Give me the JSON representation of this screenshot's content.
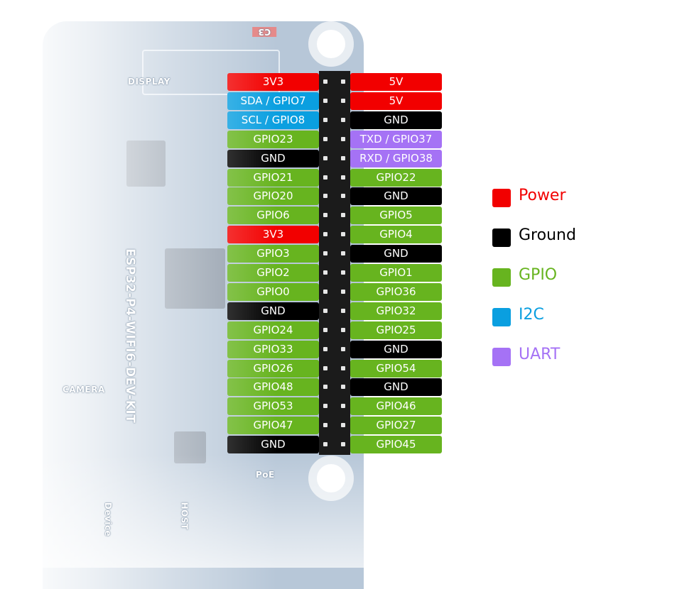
{
  "colors": {
    "power": "#f20000",
    "ground": "#000000",
    "gpio": "#67b41f",
    "i2c": "#0a9fe0",
    "uart": "#a572f5"
  },
  "board": {
    "name": "ESP32-P4-WIFI6-DEV-KIT",
    "display_label": "DISPLAY",
    "camera_label": "CAMERA",
    "poe_label": "PoE",
    "host_label": "HOST",
    "device_label": "Device",
    "cap_label": "C3"
  },
  "pins": {
    "left": [
      {
        "label": "3V3",
        "type": "power"
      },
      {
        "label": "SDA / GPIO7",
        "type": "i2c"
      },
      {
        "label": "SCL / GPIO8",
        "type": "i2c"
      },
      {
        "label": "GPIO23",
        "type": "gpio"
      },
      {
        "label": "GND",
        "type": "ground"
      },
      {
        "label": "GPIO21",
        "type": "gpio"
      },
      {
        "label": "GPIO20",
        "type": "gpio"
      },
      {
        "label": "GPIO6",
        "type": "gpio"
      },
      {
        "label": "3V3",
        "type": "power"
      },
      {
        "label": "GPIO3",
        "type": "gpio"
      },
      {
        "label": "GPIO2",
        "type": "gpio"
      },
      {
        "label": "GPIO0",
        "type": "gpio"
      },
      {
        "label": "GND",
        "type": "ground"
      },
      {
        "label": "GPIO24",
        "type": "gpio"
      },
      {
        "label": "GPIO33",
        "type": "gpio"
      },
      {
        "label": "GPIO26",
        "type": "gpio"
      },
      {
        "label": "GPIO48",
        "type": "gpio"
      },
      {
        "label": "GPIO53",
        "type": "gpio"
      },
      {
        "label": "GPIO47",
        "type": "gpio"
      },
      {
        "label": "GND",
        "type": "ground"
      }
    ],
    "right": [
      {
        "label": "5V",
        "type": "power"
      },
      {
        "label": "5V",
        "type": "power"
      },
      {
        "label": "GND",
        "type": "ground"
      },
      {
        "label": "TXD / GPIO37",
        "type": "uart"
      },
      {
        "label": "RXD / GPIO38",
        "type": "uart"
      },
      {
        "label": "GPIO22",
        "type": "gpio"
      },
      {
        "label": "GND",
        "type": "ground"
      },
      {
        "label": "GPIO5",
        "type": "gpio"
      },
      {
        "label": "GPIO4",
        "type": "gpio"
      },
      {
        "label": "GND",
        "type": "ground"
      },
      {
        "label": "GPIO1",
        "type": "gpio"
      },
      {
        "label": "GPIO36",
        "type": "gpio"
      },
      {
        "label": "GPIO32",
        "type": "gpio"
      },
      {
        "label": "GPIO25",
        "type": "gpio"
      },
      {
        "label": "GND",
        "type": "ground"
      },
      {
        "label": "GPIO54",
        "type": "gpio"
      },
      {
        "label": "GND",
        "type": "ground"
      },
      {
        "label": "GPIO46",
        "type": "gpio"
      },
      {
        "label": "GPIO27",
        "type": "gpio"
      },
      {
        "label": "GPIO45",
        "type": "gpio"
      }
    ]
  },
  "legend": [
    {
      "label": "Power",
      "type": "power"
    },
    {
      "label": "Ground",
      "type": "ground"
    },
    {
      "label": "GPIO",
      "type": "gpio"
    },
    {
      "label": "I2C",
      "type": "i2c"
    },
    {
      "label": "UART",
      "type": "uart"
    }
  ]
}
